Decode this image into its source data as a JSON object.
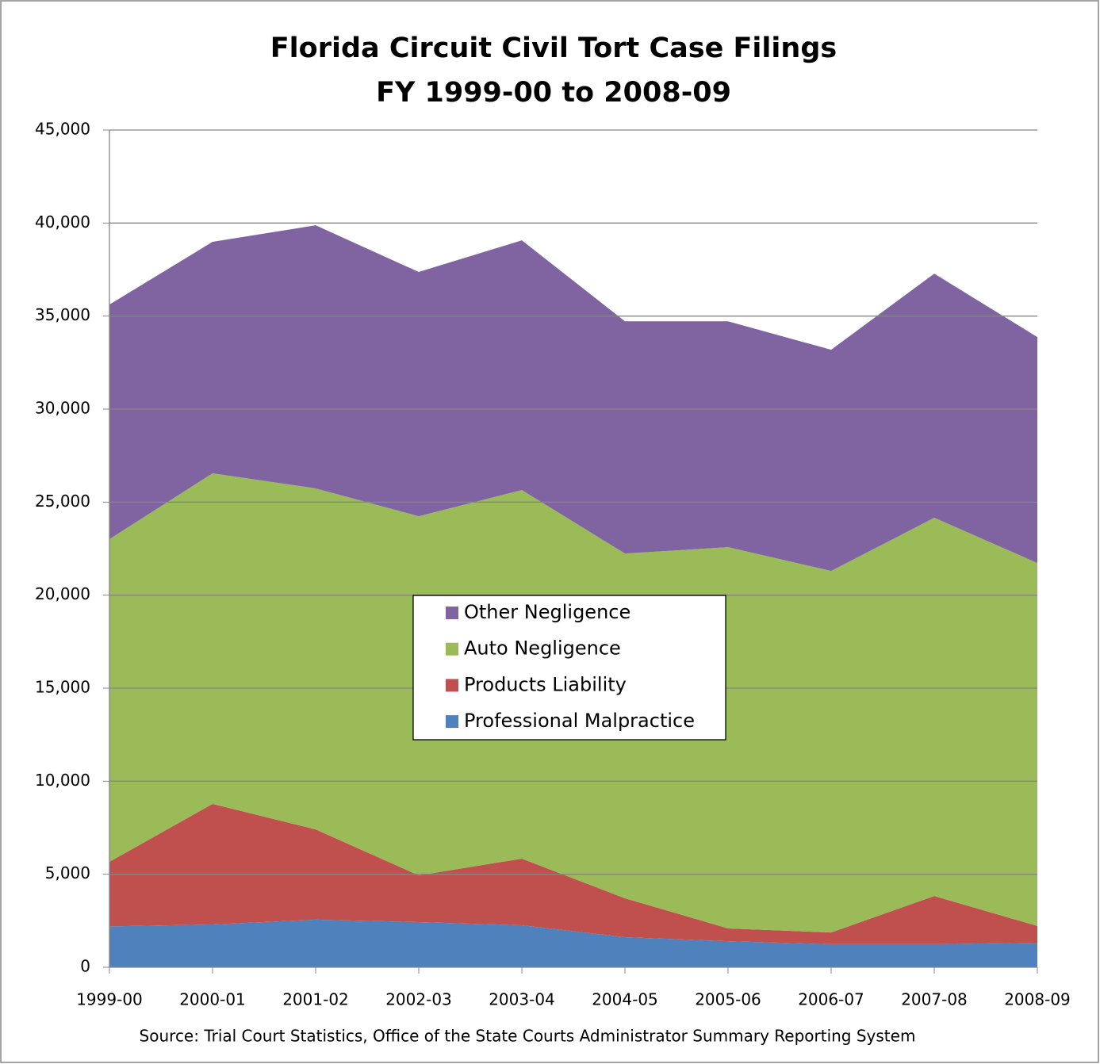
{
  "chart_data": {
    "type": "stacked_area",
    "title": [
      "Florida Circuit Civil Tort Case Filings",
      "FY 1999-00 to 2008-09"
    ],
    "categories": [
      "1999-00",
      "2000-01",
      "2001-02",
      "2002-03",
      "2003-04",
      "2004-05",
      "2005-06",
      "2006-07",
      "2007-08",
      "2008-09"
    ],
    "series": [
      {
        "name": "Professional Malpractice",
        "color": "#4f81bd",
        "values": [
          2200,
          2300,
          2560,
          2430,
          2260,
          1620,
          1400,
          1240,
          1240,
          1320
        ]
      },
      {
        "name": "Products Liability",
        "color": "#c0504d",
        "values": [
          3470,
          6480,
          4850,
          2510,
          3580,
          2090,
          690,
          630,
          2590,
          900
        ]
      },
      {
        "name": "Auto Negligence",
        "color": "#9bbb59",
        "values": [
          17340,
          17770,
          18330,
          19300,
          19810,
          18530,
          20490,
          19430,
          20330,
          19510
        ]
      },
      {
        "name": "Other Negligence",
        "color": "#8064a2",
        "values": [
          12610,
          12440,
          14140,
          13130,
          13420,
          12480,
          12140,
          11890,
          13120,
          12140
        ]
      }
    ],
    "ylim": [
      0,
      45000
    ],
    "yticks": [
      0,
      {
        "value": 5000,
        "label": "5,000"
      },
      {
        "value": 10000,
        "label": "10,000"
      },
      {
        "value": 15000,
        "label": "15,000"
      },
      {
        "value": 20000,
        "label": "20,000"
      },
      {
        "value": 25000,
        "label": "25,000"
      },
      {
        "value": 30000,
        "label": "30,000"
      },
      {
        "value": 35000,
        "label": "35,000"
      },
      {
        "value": 40000,
        "label": "40,000"
      },
      {
        "value": 45000,
        "label": "45,000"
      }
    ],
    "grid": true,
    "legend": "center",
    "annotation": "Source:  Trial Court Statistics, Office of the State Courts Administrator Summary Reporting System"
  }
}
